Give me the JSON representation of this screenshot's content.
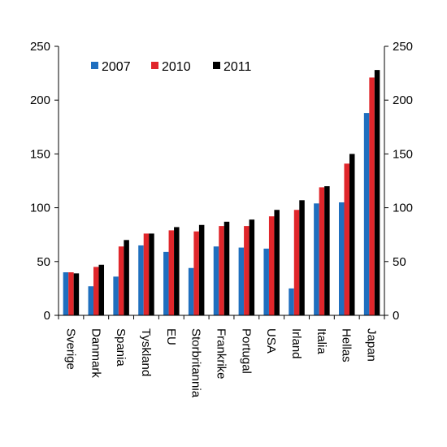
{
  "chart_data": {
    "type": "bar",
    "categories": [
      "Sverige",
      "Danmark",
      "Spania",
      "Tyskland",
      "EU",
      "Storbritannia",
      "Frankrike",
      "Portugal",
      "USA",
      "Irland",
      "Italia",
      "Hellas",
      "Japan"
    ],
    "series": [
      {
        "name": "2007",
        "color": "#1f6fbf",
        "values": [
          40,
          27,
          36,
          65,
          59,
          44,
          64,
          63,
          62,
          25,
          104,
          105,
          188
        ]
      },
      {
        "name": "2010",
        "color": "#e0262b",
        "values": [
          40,
          45,
          64,
          76,
          79,
          78,
          83,
          83,
          92,
          98,
          119,
          141,
          221
        ]
      },
      {
        "name": "2011",
        "color": "#000000",
        "values": [
          39,
          47,
          70,
          76,
          82,
          84,
          87,
          89,
          98,
          107,
          120,
          150,
          228
        ]
      }
    ],
    "ylim": [
      0,
      250
    ],
    "yticks": [
      0,
      50,
      100,
      150,
      200,
      250
    ],
    "left_axis": true,
    "right_axis": true,
    "grid": false,
    "legend_position": "top-left",
    "category_label_rotation": "vertical"
  }
}
